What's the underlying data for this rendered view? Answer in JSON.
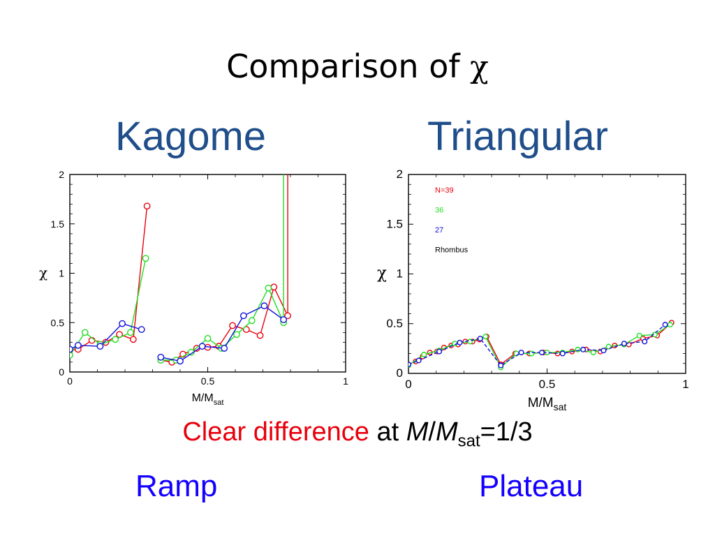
{
  "slide": {
    "title_text": "Comparison of ",
    "title_symbol": "χ",
    "left_heading": "Kagome",
    "right_heading": "Triangular",
    "note_red": "Clear difference",
    "note_at": " at ",
    "note_m": "M",
    "note_slash": "/",
    "note_msub_base": "M",
    "note_msub": "sat",
    "note_value": "=1/3",
    "bottom_left": "Ramp",
    "bottom_right": "Plateau"
  },
  "colors": {
    "red": "#e8000b",
    "green": "#22dd22",
    "blue": "#1010dd",
    "black": "#000000",
    "heading": "#1f4e8a",
    "bottom": "#1400ff"
  },
  "chart_data": [
    {
      "type": "line",
      "panel": "Kagome",
      "xlabel": "M/M",
      "xlabel_sub": "sat",
      "ylabel": "χ",
      "xlim": [
        0,
        1
      ],
      "ylim": [
        0,
        2
      ],
      "xticks": [
        0,
        0.5,
        1
      ],
      "xtick_labels": [
        "0",
        "0.5",
        "1"
      ],
      "yticks": [
        0,
        0.5,
        1,
        1.5,
        2
      ],
      "ytick_labels": [
        "0",
        "0.5",
        "1",
        "1.5",
        "2"
      ],
      "grid": false,
      "series": [
        {
          "color": "red",
          "segments": [
            [
              [
                0.0,
                0.22
              ],
              [
                0.03,
                0.23
              ],
              [
                0.08,
                0.32
              ],
              [
                0.13,
                0.3
              ],
              [
                0.18,
                0.38
              ],
              [
                0.23,
                0.33
              ],
              [
                0.28,
                1.68
              ]
            ],
            [
              [
                0.33,
                0.12
              ],
              [
                0.37,
                0.1
              ],
              [
                0.41,
                0.18
              ],
              [
                0.46,
                0.24
              ],
              [
                0.5,
                0.25
              ],
              [
                0.54,
                0.26
              ],
              [
                0.59,
                0.47
              ],
              [
                0.64,
                0.43
              ],
              [
                0.69,
                0.37
              ],
              [
                0.74,
                0.86
              ],
              [
                0.79,
                0.57
              ],
              [
                0.79,
                2.0
              ]
            ]
          ]
        },
        {
          "color": "green",
          "segments": [
            [
              [
                0.0,
                0.17
              ],
              [
                0.055,
                0.4
              ],
              [
                0.11,
                0.28
              ],
              [
                0.165,
                0.33
              ],
              [
                0.22,
                0.4
              ],
              [
                0.275,
                1.15
              ]
            ],
            [
              [
                0.33,
                0.12
              ],
              [
                0.385,
                0.12
              ],
              [
                0.44,
                0.2
              ],
              [
                0.5,
                0.34
              ],
              [
                0.55,
                0.24
              ],
              [
                0.605,
                0.38
              ],
              [
                0.66,
                0.52
              ],
              [
                0.72,
                0.85
              ],
              [
                0.775,
                0.5
              ],
              [
                0.775,
                2.0
              ]
            ]
          ]
        },
        {
          "color": "blue",
          "segments": [
            [
              [
                0.0,
                0.23
              ],
              [
                0.03,
                0.27
              ],
              [
                0.11,
                0.26
              ],
              [
                0.19,
                0.49
              ],
              [
                0.26,
                0.43
              ]
            ],
            [
              [
                0.33,
                0.15
              ],
              [
                0.4,
                0.11
              ],
              [
                0.48,
                0.26
              ],
              [
                0.56,
                0.24
              ],
              [
                0.63,
                0.57
              ],
              [
                0.705,
                0.67
              ],
              [
                0.775,
                0.53
              ]
            ]
          ]
        }
      ]
    },
    {
      "type": "line",
      "panel": "Triangular",
      "xlabel": "M/M",
      "xlabel_sub": "sat",
      "ylabel": "χ",
      "xlim": [
        0,
        1
      ],
      "ylim": [
        0,
        2
      ],
      "xticks": [
        0,
        0.5,
        1
      ],
      "xtick_labels": [
        "0",
        "0.5",
        "1"
      ],
      "yticks": [
        0,
        0.5,
        1,
        1.5,
        2
      ],
      "ytick_labels": [
        "0",
        "0.5",
        "1",
        "1.5",
        "2"
      ],
      "grid": false,
      "legend_position": "top-left",
      "series": [
        {
          "name": "N=39",
          "color": "red",
          "style": "solid",
          "points": [
            [
              0.0,
              0.09
            ],
            [
              0.026,
              0.12
            ],
            [
              0.051,
              0.17
            ],
            [
              0.077,
              0.21
            ],
            [
              0.103,
              0.22
            ],
            [
              0.128,
              0.26
            ],
            [
              0.154,
              0.28
            ],
            [
              0.179,
              0.29
            ],
            [
              0.205,
              0.32
            ],
            [
              0.231,
              0.32
            ],
            [
              0.256,
              0.34
            ],
            [
              0.282,
              0.37
            ],
            [
              0.333,
              0.09
            ],
            [
              0.385,
              0.2
            ],
            [
              0.436,
              0.2
            ],
            [
              0.487,
              0.21
            ],
            [
              0.538,
              0.2
            ],
            [
              0.59,
              0.22
            ],
            [
              0.641,
              0.24
            ],
            [
              0.692,
              0.22
            ],
            [
              0.744,
              0.28
            ],
            [
              0.795,
              0.29
            ],
            [
              0.846,
              0.35
            ],
            [
              0.897,
              0.38
            ],
            [
              0.949,
              0.51
            ]
          ]
        },
        {
          "name": "36",
          "color": "green",
          "style": "solid",
          "points": [
            [
              0.0,
              0.08
            ],
            [
              0.056,
              0.19
            ],
            [
              0.111,
              0.23
            ],
            [
              0.167,
              0.3
            ],
            [
              0.222,
              0.32
            ],
            [
              0.278,
              0.37
            ],
            [
              0.333,
              0.06
            ],
            [
              0.389,
              0.2
            ],
            [
              0.444,
              0.2
            ],
            [
              0.5,
              0.21
            ],
            [
              0.556,
              0.21
            ],
            [
              0.611,
              0.24
            ],
            [
              0.667,
              0.21
            ],
            [
              0.722,
              0.27
            ],
            [
              0.778,
              0.29
            ],
            [
              0.833,
              0.38
            ],
            [
              0.889,
              0.39
            ],
            [
              0.944,
              0.49
            ]
          ]
        },
        {
          "name": "27",
          "color": "blue",
          "style": "dashed",
          "points": [
            [
              0.0,
              0.09
            ],
            [
              0.037,
              0.13
            ],
            [
              0.111,
              0.22
            ],
            [
              0.185,
              0.31
            ],
            [
              0.259,
              0.35
            ],
            [
              0.333,
              0.08
            ],
            [
              0.407,
              0.21
            ],
            [
              0.481,
              0.21
            ],
            [
              0.556,
              0.2
            ],
            [
              0.63,
              0.24
            ],
            [
              0.704,
              0.23
            ],
            [
              0.778,
              0.3
            ],
            [
              0.852,
              0.32
            ],
            [
              0.926,
              0.49
            ]
          ]
        },
        {
          "name": "Rhombus",
          "color": "black",
          "style": "none",
          "points": []
        }
      ]
    }
  ]
}
